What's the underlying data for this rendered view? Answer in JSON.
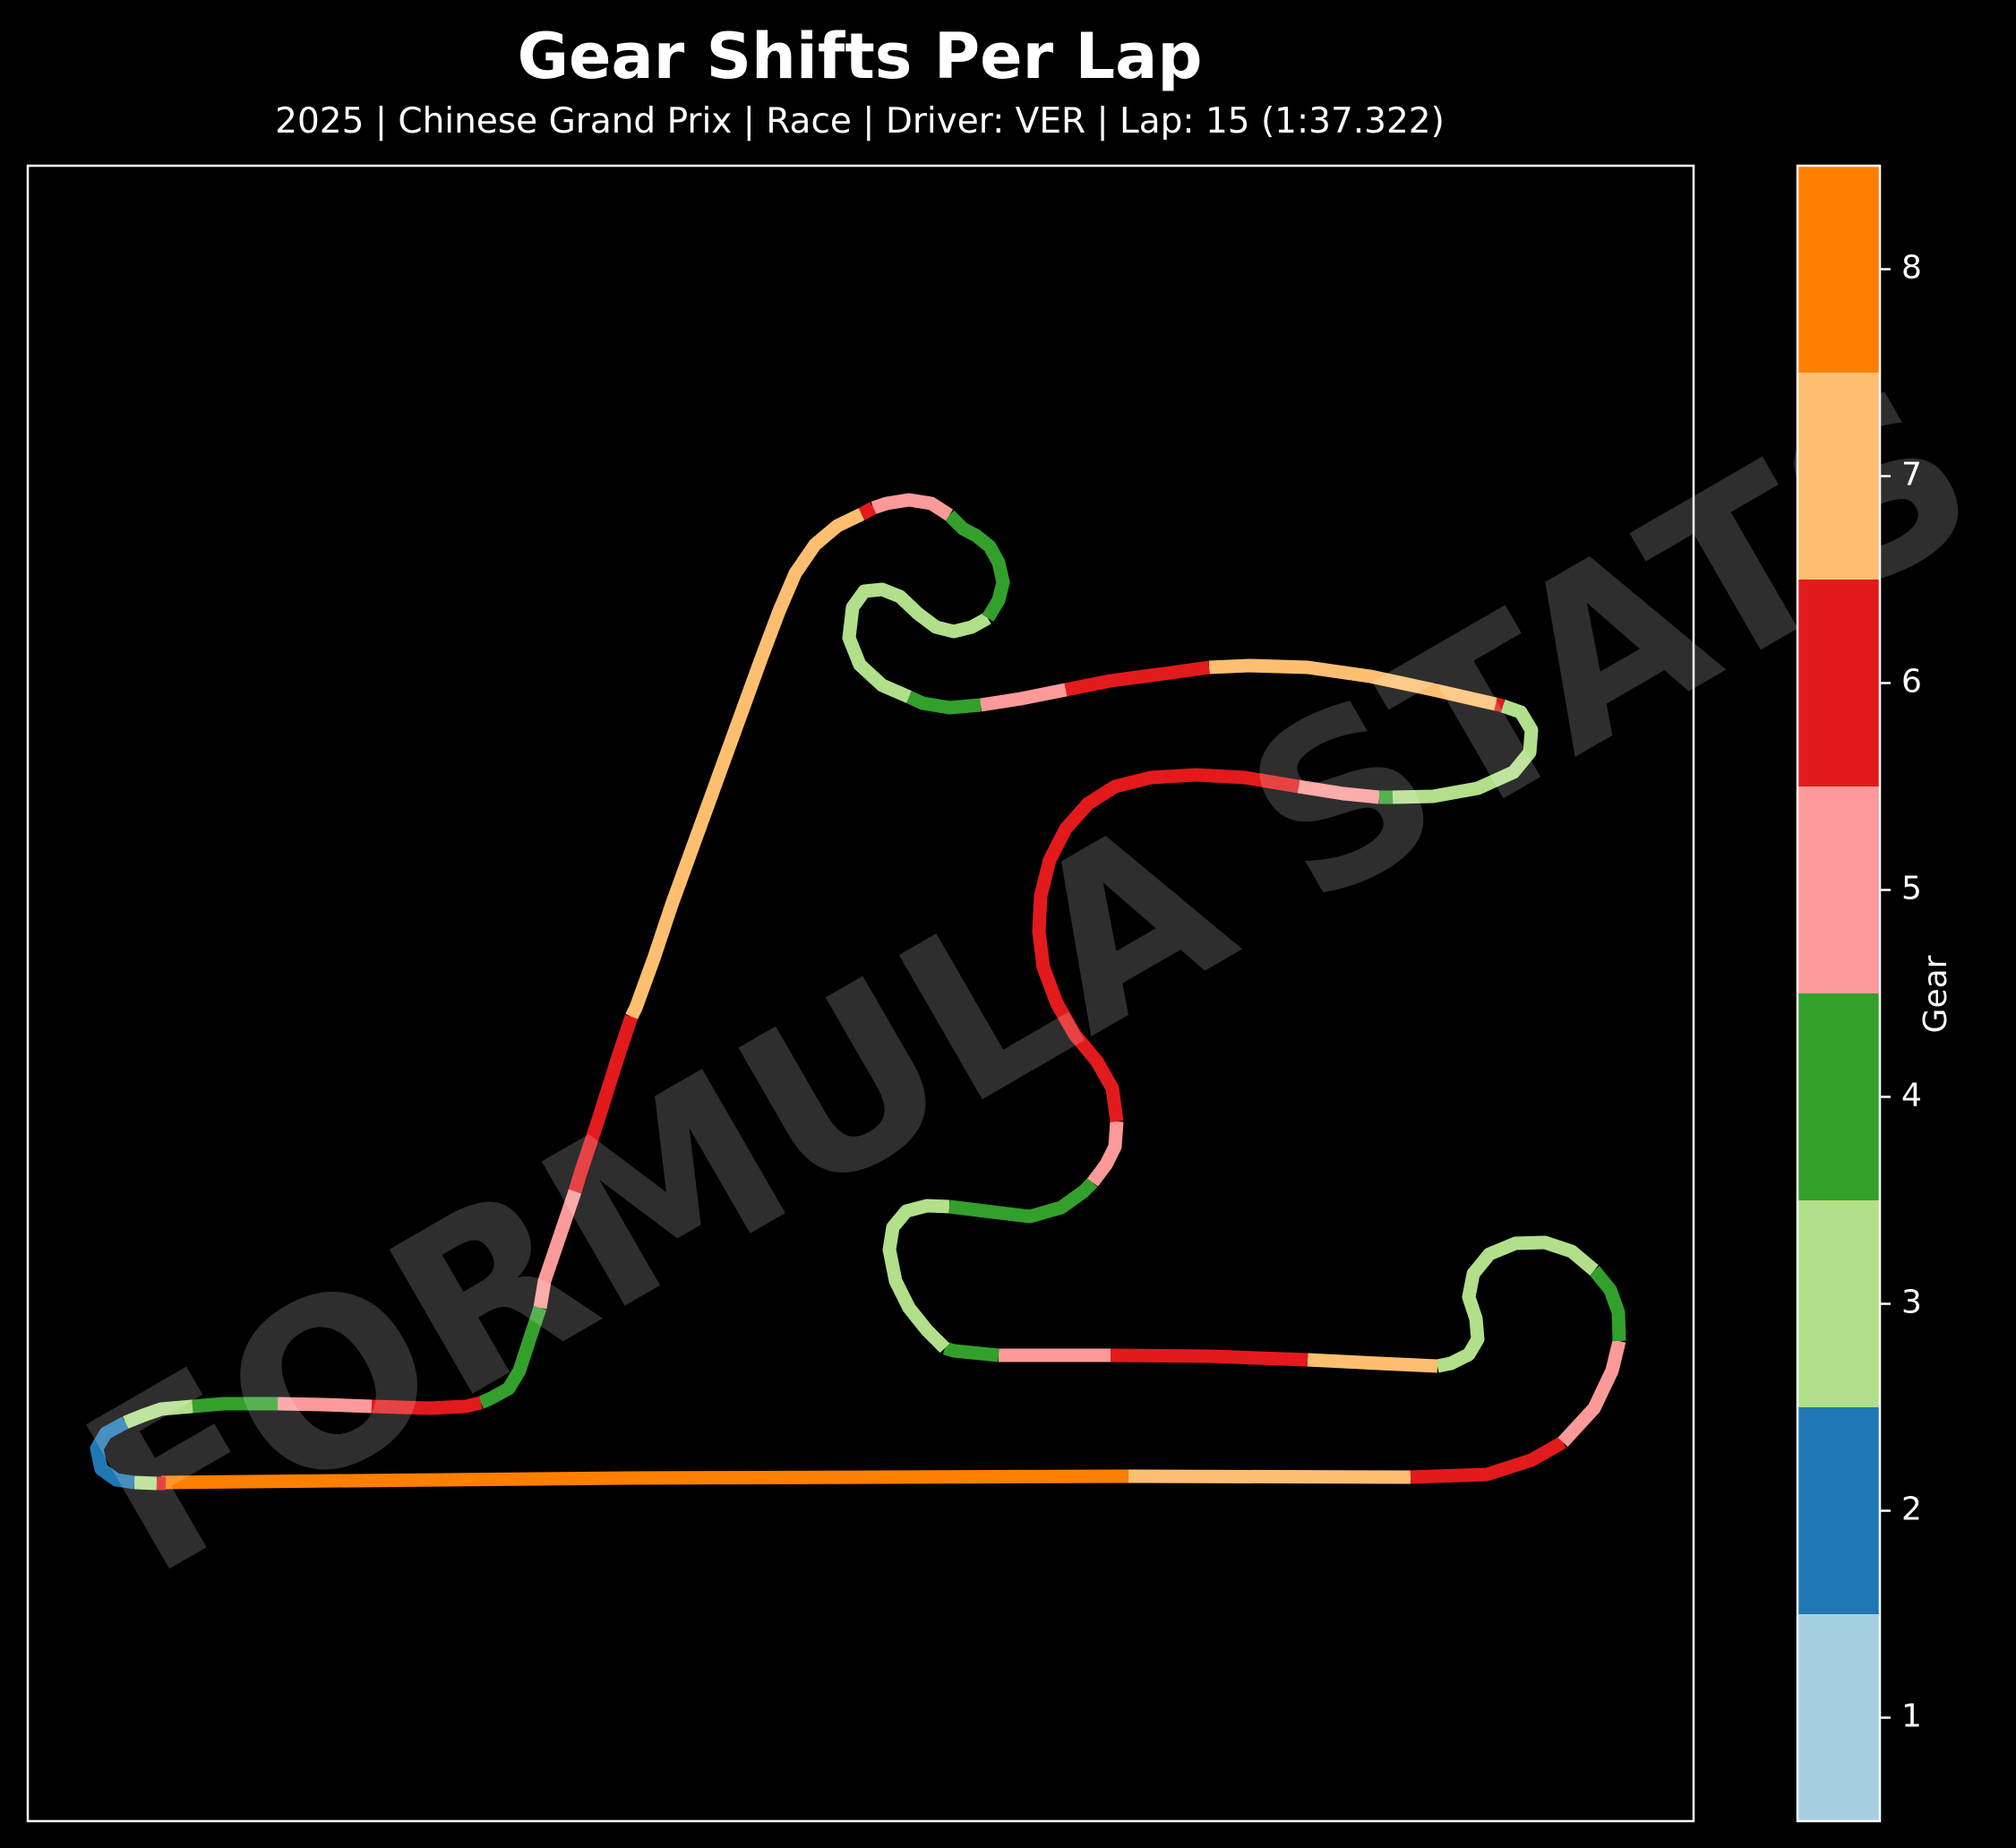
{
  "chart_data": {
    "type": "line",
    "title": "Gear Shifts Per Lap",
    "subtitle": "2025 | Chinese Grand Prix | Race | Driver: VER | Lap: 15 (1:37.322)",
    "watermark": "FORMULA STATS",
    "colorbar": {
      "label": "Gear",
      "ticks": [
        1,
        2,
        3,
        4,
        5,
        6,
        7,
        8
      ],
      "range": [
        0.5,
        8.5
      ],
      "colors": {
        "1": "#a6cee3",
        "2": "#1f78b4",
        "3": "#b2df8a",
        "4": "#33a02c",
        "5": "#fb9a99",
        "6": "#e31a1c",
        "7": "#fdbf6f",
        "8": "#ff7f00"
      }
    },
    "axes": {
      "ticks_visible": false,
      "grid": false,
      "legend": "colorbar-right"
    },
    "track_segments": [
      {
        "gear": 8,
        "pts": [
          [
            180,
            1655
          ],
          [
            700,
            1650
          ],
          [
            1260,
            1648
          ]
        ]
      },
      {
        "gear": 7,
        "pts": [
          [
            1260,
            1648
          ],
          [
            1575,
            1649
          ]
        ]
      },
      {
        "gear": 6,
        "pts": [
          [
            1575,
            1649
          ],
          [
            1660,
            1646
          ],
          [
            1710,
            1630
          ],
          [
            1745,
            1610
          ]
        ]
      },
      {
        "gear": 5,
        "pts": [
          [
            1745,
            1610
          ],
          [
            1780,
            1572
          ],
          [
            1800,
            1530
          ],
          [
            1808,
            1497
          ]
        ]
      },
      {
        "gear": 4,
        "pts": [
          [
            1808,
            1497
          ],
          [
            1807,
            1465
          ],
          [
            1798,
            1440
          ],
          [
            1780,
            1418
          ]
        ]
      },
      {
        "gear": 3,
        "pts": [
          [
            1780,
            1418
          ],
          [
            1755,
            1397
          ],
          [
            1725,
            1387
          ],
          [
            1692,
            1388
          ],
          [
            1663,
            1400
          ],
          [
            1645,
            1422
          ],
          [
            1640,
            1448
          ],
          [
            1648,
            1472
          ],
          [
            1650,
            1495
          ],
          [
            1640,
            1512
          ],
          [
            1620,
            1522
          ],
          [
            1605,
            1525
          ]
        ]
      },
      {
        "gear": 7,
        "pts": [
          [
            1605,
            1525
          ],
          [
            1540,
            1522
          ],
          [
            1460,
            1518
          ]
        ]
      },
      {
        "gear": 6,
        "pts": [
          [
            1460,
            1518
          ],
          [
            1350,
            1514
          ],
          [
            1240,
            1513
          ]
        ]
      },
      {
        "gear": 5,
        "pts": [
          [
            1240,
            1513
          ],
          [
            1115,
            1513
          ]
        ]
      },
      {
        "gear": 4,
        "pts": [
          [
            1115,
            1513
          ],
          [
            1065,
            1508
          ],
          [
            1055,
            1505
          ]
        ]
      },
      {
        "gear": 3,
        "pts": [
          [
            1055,
            1505
          ],
          [
            1035,
            1485
          ],
          [
            1015,
            1460
          ],
          [
            1000,
            1430
          ],
          [
            993,
            1395
          ],
          [
            997,
            1370
          ],
          [
            1012,
            1352
          ],
          [
            1035,
            1346
          ],
          [
            1060,
            1347
          ]
        ]
      },
      {
        "gear": 4,
        "pts": [
          [
            1060,
            1347
          ],
          [
            1100,
            1352
          ],
          [
            1150,
            1358
          ],
          [
            1185,
            1348
          ],
          [
            1210,
            1330
          ],
          [
            1220,
            1320
          ]
        ]
      },
      {
        "gear": 5,
        "pts": [
          [
            1220,
            1320
          ],
          [
            1235,
            1300
          ],
          [
            1245,
            1280
          ],
          [
            1247,
            1252
          ]
        ]
      },
      {
        "gear": 6,
        "pts": [
          [
            1247,
            1252
          ],
          [
            1242,
            1215
          ],
          [
            1225,
            1185
          ],
          [
            1200,
            1155
          ],
          [
            1180,
            1120
          ],
          [
            1165,
            1080
          ],
          [
            1160,
            1040
          ],
          [
            1162,
            1000
          ],
          [
            1172,
            960
          ],
          [
            1190,
            925
          ],
          [
            1215,
            897
          ],
          [
            1245,
            878
          ],
          [
            1285,
            868
          ],
          [
            1335,
            865
          ],
          [
            1390,
            868
          ],
          [
            1450,
            878
          ]
        ]
      },
      {
        "gear": 5,
        "pts": [
          [
            1450,
            878
          ],
          [
            1500,
            886
          ],
          [
            1540,
            890
          ]
        ]
      },
      {
        "gear": 4,
        "pts": [
          [
            1540,
            890
          ],
          [
            1555,
            890
          ]
        ]
      },
      {
        "gear": 3,
        "pts": [
          [
            1555,
            890
          ],
          [
            1600,
            889
          ],
          [
            1650,
            880
          ],
          [
            1690,
            862
          ],
          [
            1708,
            840
          ],
          [
            1710,
            815
          ],
          [
            1698,
            795
          ],
          [
            1678,
            788
          ]
        ]
      },
      {
        "gear": 6,
        "pts": [
          [
            1678,
            788
          ],
          [
            1670,
            786
          ]
        ]
      },
      {
        "gear": 7,
        "pts": [
          [
            1670,
            786
          ],
          [
            1600,
            770
          ],
          [
            1530,
            755
          ],
          [
            1460,
            745
          ],
          [
            1395,
            743
          ],
          [
            1350,
            745
          ]
        ]
      },
      {
        "gear": 6,
        "pts": [
          [
            1350,
            745
          ],
          [
            1300,
            752
          ],
          [
            1240,
            760
          ],
          [
            1190,
            770
          ]
        ]
      },
      {
        "gear": 5,
        "pts": [
          [
            1190,
            770
          ],
          [
            1140,
            780
          ],
          [
            1095,
            787
          ]
        ]
      },
      {
        "gear": 4,
        "pts": [
          [
            1095,
            787
          ],
          [
            1060,
            790
          ],
          [
            1030,
            785
          ],
          [
            1015,
            778
          ]
        ]
      },
      {
        "gear": 3,
        "pts": [
          [
            1015,
            778
          ],
          [
            985,
            765
          ],
          [
            960,
            742
          ],
          [
            948,
            712
          ],
          [
            952,
            678
          ],
          [
            965,
            660
          ],
          [
            985,
            658
          ],
          [
            1005,
            666
          ],
          [
            1025,
            685
          ],
          [
            1045,
            700
          ],
          [
            1065,
            705
          ],
          [
            1085,
            700
          ],
          [
            1103,
            690
          ]
        ]
      },
      {
        "gear": 4,
        "pts": [
          [
            1103,
            690
          ],
          [
            1115,
            670
          ],
          [
            1120,
            650
          ],
          [
            1115,
            628
          ],
          [
            1105,
            610
          ],
          [
            1090,
            598
          ],
          [
            1075,
            590
          ],
          [
            1060,
            575
          ]
        ]
      },
      {
        "gear": 5,
        "pts": [
          [
            1060,
            575
          ],
          [
            1040,
            562
          ],
          [
            1015,
            558
          ],
          [
            990,
            562
          ],
          [
            975,
            567
          ]
        ]
      },
      {
        "gear": 6,
        "pts": [
          [
            975,
            567
          ],
          [
            962,
            574
          ]
        ]
      },
      {
        "gear": 7,
        "pts": [
          [
            962,
            574
          ],
          [
            935,
            587
          ],
          [
            910,
            608
          ],
          [
            888,
            640
          ],
          [
            870,
            682
          ],
          [
            850,
            735
          ],
          [
            830,
            790
          ],
          [
            810,
            845
          ],
          [
            790,
            900
          ],
          [
            770,
            955
          ],
          [
            750,
            1010
          ],
          [
            730,
            1070
          ],
          [
            710,
            1125
          ],
          [
            705,
            1135
          ]
        ]
      },
      {
        "gear": 6,
        "pts": [
          [
            705,
            1135
          ],
          [
            690,
            1180
          ],
          [
            668,
            1250
          ],
          [
            648,
            1310
          ],
          [
            642,
            1330
          ]
        ]
      },
      {
        "gear": 5,
        "pts": [
          [
            642,
            1330
          ],
          [
            625,
            1380
          ],
          [
            608,
            1430
          ],
          [
            603,
            1460
          ]
        ]
      },
      {
        "gear": 4,
        "pts": [
          [
            603,
            1460
          ],
          [
            593,
            1490
          ],
          [
            580,
            1530
          ],
          [
            568,
            1550
          ],
          [
            550,
            1560
          ],
          [
            537,
            1566
          ]
        ]
      },
      {
        "gear": 6,
        "pts": [
          [
            537,
            1566
          ],
          [
            520,
            1570
          ],
          [
            480,
            1572
          ],
          [
            415,
            1570
          ]
        ]
      },
      {
        "gear": 5,
        "pts": [
          [
            415,
            1570
          ],
          [
            360,
            1568
          ],
          [
            310,
            1567
          ]
        ]
      },
      {
        "gear": 4,
        "pts": [
          [
            310,
            1567
          ],
          [
            250,
            1567
          ],
          [
            215,
            1570
          ]
        ]
      },
      {
        "gear": 3,
        "pts": [
          [
            215,
            1570
          ],
          [
            180,
            1573
          ],
          [
            160,
            1580
          ],
          [
            140,
            1588
          ]
        ]
      },
      {
        "gear": 2,
        "pts": [
          [
            140,
            1588
          ],
          [
            118,
            1600
          ],
          [
            108,
            1617
          ],
          [
            113,
            1640
          ],
          [
            130,
            1652
          ],
          [
            150,
            1655
          ]
        ]
      },
      {
        "gear": 3,
        "pts": [
          [
            150,
            1655
          ],
          [
            175,
            1656
          ]
        ]
      },
      {
        "gear": 6,
        "pts": [
          [
            175,
            1656
          ],
          [
            185,
            1656
          ]
        ]
      }
    ]
  }
}
